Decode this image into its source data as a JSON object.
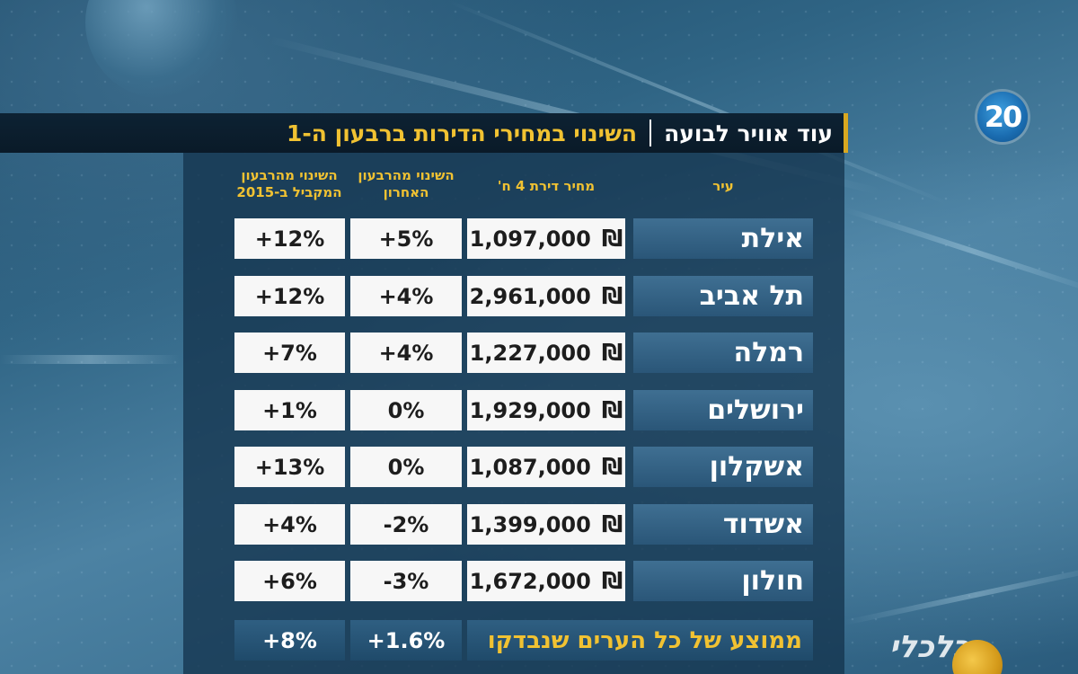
{
  "channel_logo": "20",
  "title": {
    "left_part": "עוד אוויר לבועה",
    "right_part": "השינוי במחירי הדירות ברבעון ה-1"
  },
  "headers": {
    "city": "עיר",
    "price": "מחיר דירת 4 ח'",
    "change_last_quarter": "השינוי מהרבעון האחרון",
    "change_yoy": "השינוי מהרבעון המקביל ב-2015"
  },
  "currency_symbol": "₪",
  "rows": [
    {
      "city": "אילת",
      "price": "1,097,000",
      "change_last": "+5%",
      "change_yoy": "+12%"
    },
    {
      "city": "תל אביב",
      "price": "2,961,000",
      "change_last": "+4%",
      "change_yoy": "+12%"
    },
    {
      "city": "רמלה",
      "price": "1,227,000",
      "change_last": "+4%",
      "change_yoy": "+7%"
    },
    {
      "city": "ירושלים",
      "price": "1,929,000",
      "change_last": "0%",
      "change_yoy": "+1%"
    },
    {
      "city": "אשקלון",
      "price": "1,087,000",
      "change_last": "0%",
      "change_yoy": "+13%"
    },
    {
      "city": "אשדוד",
      "price": "1,399,000",
      "change_last": "-2%",
      "change_yoy": "+4%"
    },
    {
      "city": "חולון",
      "price": "1,672,000",
      "change_last": "-3%",
      "change_yoy": "+6%"
    }
  ],
  "average": {
    "label": "ממוצע של כל הערים שנבדקו",
    "change_last": "+1.6%",
    "change_yoy": "+8%"
  },
  "corner_logo_text": "כלכלי",
  "colors": {
    "accent_gold": "#f1c232",
    "title_bg": "#0a1a28",
    "city_cell": "#2f5f82"
  }
}
